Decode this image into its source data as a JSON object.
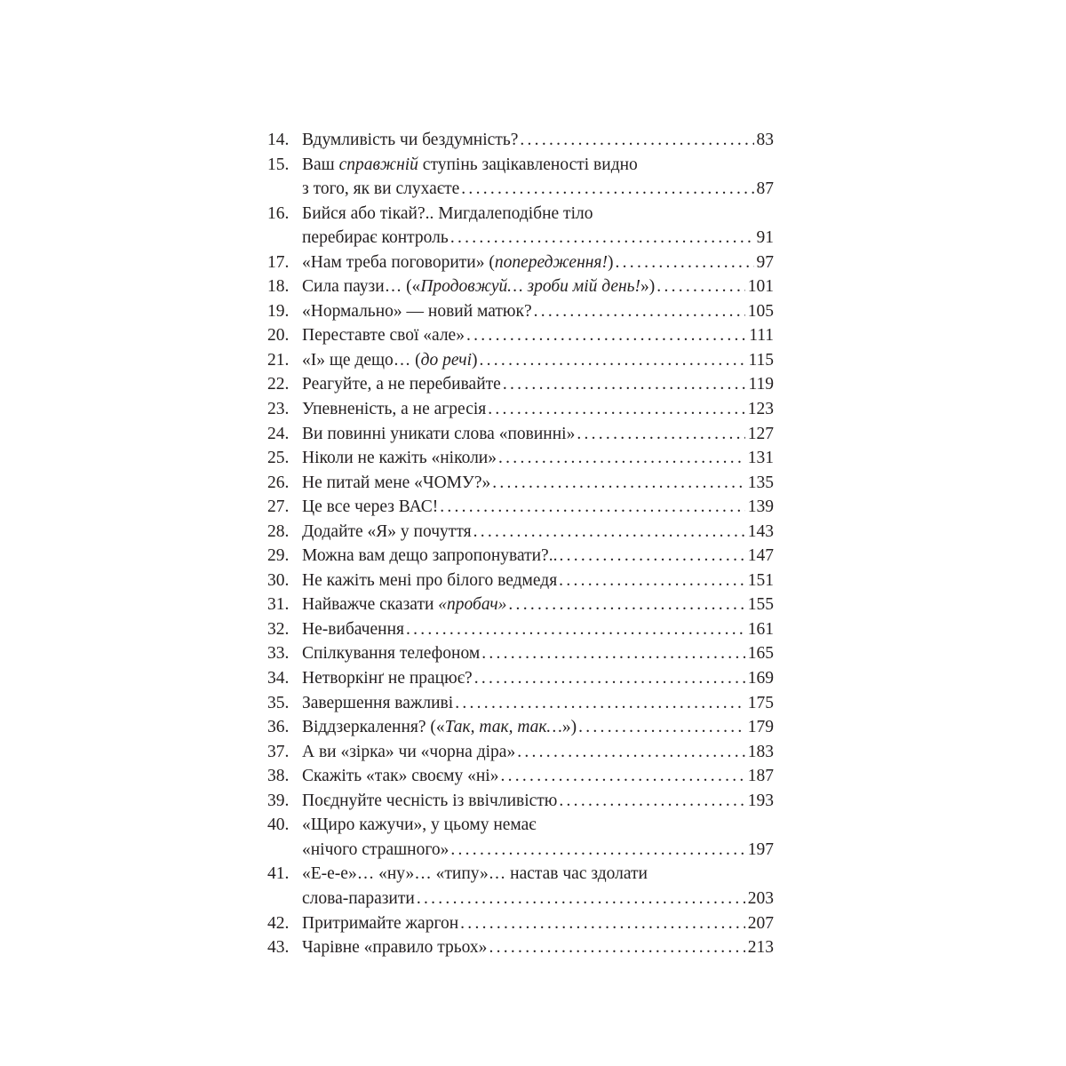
{
  "toc": [
    {
      "num": "14.",
      "lines": [
        [
          {
            "t": "Вдумливість чи бездумність?"
          }
        ]
      ],
      "page": "83"
    },
    {
      "num": "15.",
      "lines": [
        [
          {
            "t": "Ваш "
          },
          {
            "t": "справжній",
            "i": true
          },
          {
            "t": " ступінь зацікавленості видно"
          }
        ],
        [
          {
            "t": "з того, як ви слухаєте"
          }
        ]
      ],
      "page": "87"
    },
    {
      "num": "16.",
      "lines": [
        [
          {
            "t": "Бийся або тікай?.. Мигдалеподібне тіло"
          }
        ],
        [
          {
            "t": "перебирає контроль"
          }
        ]
      ],
      "page": "91"
    },
    {
      "num": "17.",
      "lines": [
        [
          {
            "t": "«Нам треба поговорити» ("
          },
          {
            "t": "попередження!",
            "i": true
          },
          {
            "t": ")"
          }
        ]
      ],
      "page": "97"
    },
    {
      "num": "18.",
      "lines": [
        [
          {
            "t": "Сила паузи… («"
          },
          {
            "t": "Продовжуй… зроби мій день!",
            "i": true
          },
          {
            "t": "»)"
          }
        ]
      ],
      "page": "101"
    },
    {
      "num": "19.",
      "lines": [
        [
          {
            "t": "«Нормально» — новий матюк?"
          }
        ]
      ],
      "page": "105"
    },
    {
      "num": "20.",
      "lines": [
        [
          {
            "t": "Переставте свої «але»"
          }
        ]
      ],
      "page": "111"
    },
    {
      "num": "21.",
      "lines": [
        [
          {
            "t": "«І» ще дещо… ("
          },
          {
            "t": "до речі",
            "i": true
          },
          {
            "t": ")"
          }
        ]
      ],
      "page": "115"
    },
    {
      "num": "22.",
      "lines": [
        [
          {
            "t": "Реагуйте, а не перебивайте"
          }
        ]
      ],
      "page": "119"
    },
    {
      "num": "23.",
      "lines": [
        [
          {
            "t": "Упевненість, а не агресія"
          }
        ]
      ],
      "page": "123"
    },
    {
      "num": "24.",
      "lines": [
        [
          {
            "t": "Ви повинні уникати слова «повинні»"
          }
        ]
      ],
      "page": "127"
    },
    {
      "num": "25.",
      "lines": [
        [
          {
            "t": "Ніколи не кажіть «ніколи»"
          }
        ]
      ],
      "page": "131"
    },
    {
      "num": "26.",
      "lines": [
        [
          {
            "t": "Не питай мене «ЧОМУ?»"
          }
        ]
      ],
      "page": "135"
    },
    {
      "num": "27.",
      "lines": [
        [
          {
            "t": "Це все через ВАС!"
          }
        ]
      ],
      "page": "139"
    },
    {
      "num": "28.",
      "lines": [
        [
          {
            "t": "Додайте «Я» у почуття"
          }
        ]
      ],
      "page": "143"
    },
    {
      "num": "29.",
      "lines": [
        [
          {
            "t": "Можна вам дещо запропонувати?.."
          }
        ]
      ],
      "page": "147"
    },
    {
      "num": "30.",
      "lines": [
        [
          {
            "t": "Не кажіть мені про білого ведмедя"
          }
        ]
      ],
      "page": "151"
    },
    {
      "num": "31.",
      "lines": [
        [
          {
            "t": "Найважче сказати "
          },
          {
            "t": "«пробач»",
            "i": true
          }
        ]
      ],
      "page": "155"
    },
    {
      "num": "32.",
      "lines": [
        [
          {
            "t": "Не-вибачення"
          }
        ]
      ],
      "page": "161"
    },
    {
      "num": "33.",
      "lines": [
        [
          {
            "t": "Спілкування телефоном"
          }
        ]
      ],
      "page": "165"
    },
    {
      "num": "34.",
      "lines": [
        [
          {
            "t": "Нетворкінґ не працює?"
          }
        ]
      ],
      "page": "169"
    },
    {
      "num": "35.",
      "lines": [
        [
          {
            "t": "Завершення важливі"
          }
        ]
      ],
      "page": "175"
    },
    {
      "num": "36.",
      "lines": [
        [
          {
            "t": "Віддзеркалення? («"
          },
          {
            "t": "Так, так, так…",
            "i": true
          },
          {
            "t": "»)"
          }
        ]
      ],
      "page": "179"
    },
    {
      "num": "37.",
      "lines": [
        [
          {
            "t": "А ви «зірка» чи «чорна діра»"
          }
        ]
      ],
      "page": "183"
    },
    {
      "num": "38.",
      "lines": [
        [
          {
            "t": "Скажіть «так» своєму «ні»"
          }
        ]
      ],
      "page": "187"
    },
    {
      "num": "39.",
      "lines": [
        [
          {
            "t": "Поєднуйте чесність із ввічливістю"
          }
        ]
      ],
      "page": "193"
    },
    {
      "num": "40.",
      "lines": [
        [
          {
            "t": "«Щиро кажучи», у цьому немає"
          }
        ],
        [
          {
            "t": "«нічого страшного»"
          }
        ]
      ],
      "page": "197"
    },
    {
      "num": "41.",
      "lines": [
        [
          {
            "t": "«Е-е-е»… «ну»… «типу»… настав час здолати"
          }
        ],
        [
          {
            "t": "слова-паразити"
          }
        ]
      ],
      "page": "203"
    },
    {
      "num": "42.",
      "lines": [
        [
          {
            "t": "Притримайте жаргон"
          }
        ]
      ],
      "page": "207"
    },
    {
      "num": "43.",
      "lines": [
        [
          {
            "t": "Чарівне «правило трьох»"
          }
        ]
      ],
      "page": "213"
    }
  ]
}
